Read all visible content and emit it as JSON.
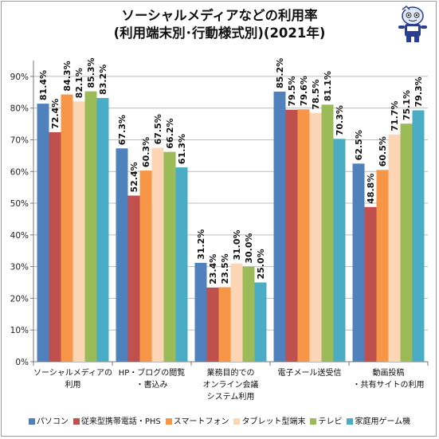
{
  "chart_data": {
    "type": "bar",
    "title_lines": [
      "ソーシャルメディアなどの利用率",
      "(利用端末別･行動様式別)(2021年)"
    ],
    "categories": [
      [
        "ソーシャルメディアの",
        "利用"
      ],
      [
        "HP・ブログの閲覧",
        "・書込み"
      ],
      [
        "業務目的での",
        "オンライン会議",
        "システム利用"
      ],
      [
        "電子メール送受信"
      ],
      [
        "動画投稿",
        "・共有サイトの利用"
      ]
    ],
    "series": [
      {
        "name": "パソコン",
        "color": "#4f81bd",
        "values": [
          81.4,
          67.3,
          31.2,
          85.2,
          62.5
        ]
      },
      {
        "name": "従来型携帯電話・PHS",
        "color": "#c0504d",
        "values": [
          72.4,
          52.4,
          23.4,
          79.5,
          48.8
        ]
      },
      {
        "name": "スマートフォン",
        "color": "#f79646",
        "values": [
          84.3,
          60.3,
          23.5,
          79.6,
          60.5
        ]
      },
      {
        "name": "タブレット型端末",
        "color": "#fcd5b5",
        "values": [
          82.1,
          67.5,
          31.0,
          78.5,
          71.7
        ]
      },
      {
        "name": "テレビ",
        "color": "#9bbb59",
        "values": [
          85.3,
          66.2,
          30.0,
          81.1,
          75.1
        ]
      },
      {
        "name": "家庭用ゲーム機",
        "color": "#4bacc6",
        "values": [
          83.2,
          61.3,
          25.0,
          70.3,
          79.3
        ]
      }
    ],
    "y_axis": {
      "min": 0,
      "max": 95,
      "ticks": [
        0,
        10,
        20,
        30,
        40,
        50,
        60,
        70,
        80,
        90
      ],
      "unit": "%"
    },
    "data_label_suffix": "%",
    "grid": true,
    "legend": "bottom"
  },
  "mascot_icon": "mascot-icon"
}
